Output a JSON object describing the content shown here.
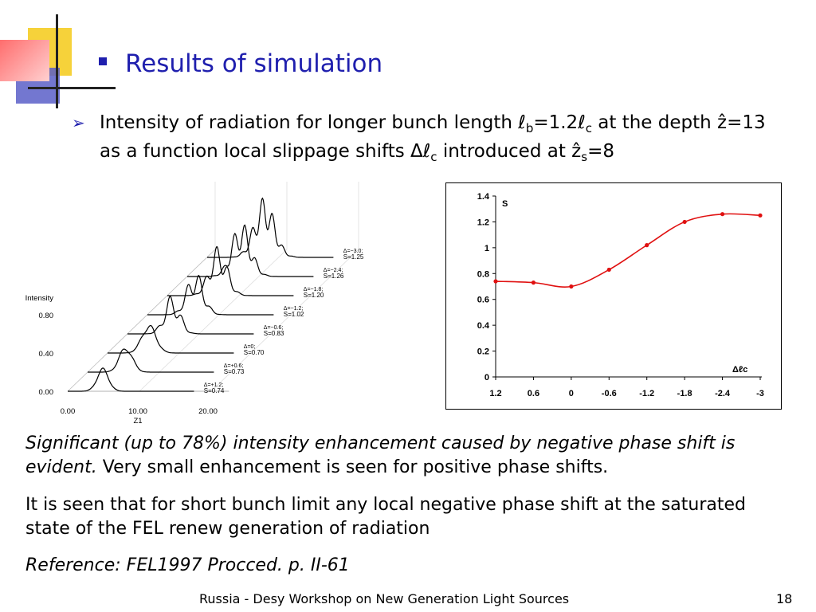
{
  "slide": {
    "title": "Results of simulation",
    "intro": {
      "p1": "Intensity of radiation for longer bunch length ℓ",
      "p1_sub": "b",
      "p2": "=1.2ℓ",
      "p2_sub": "c",
      "p3": " at the depth ẑ=13 as a function local slippage shifts Δℓ",
      "p3_sub": "c",
      "p4": " introduced at ẑ",
      "p4_sub": "s",
      "p5": "=8"
    },
    "para1_italic": "Significant (up to 78%) intensity enhancement caused by negative phase shift is evident.",
    "para1_normal": " Very small enhancement is seen for positive phase shifts.",
    "para2": "It is seen that for short bunch limit any local negative phase shift at the saturated state of the FEL renew generation of radiation",
    "reference": "Reference: FEL1997 Procced. p. II-61",
    "footer": "Russia - Desy Workshop on New Generation Light Sources",
    "page_number": "18"
  },
  "chart_data": [
    {
      "type": "line",
      "title": "",
      "ylabel": "Intensity",
      "xlabel": "Z1",
      "x_ticks": [
        "0.00",
        "10.00",
        "20.00"
      ],
      "y_ticks": [
        "0.00",
        "0.40",
        "0.80"
      ],
      "series_labels": [
        {
          "delta": "Δ=+1.2;",
          "s": "S=0.74"
        },
        {
          "delta": "Δ=+0.6;",
          "s": "S=0.73"
        },
        {
          "delta": "Δ=0;",
          "s": "S=0.70"
        },
        {
          "delta": "Δ=−0.6;",
          "s": "S=0.83"
        },
        {
          "delta": "Δ=−1.2;",
          "s": "S=1.02"
        },
        {
          "delta": "Δ=−1.8;",
          "s": "S=1.20"
        },
        {
          "delta": "Δ=−2.4;",
          "s": "S=1.26"
        },
        {
          "delta": "Δ=−3.0;",
          "s": "S=1.25"
        }
      ]
    },
    {
      "type": "line",
      "title": "",
      "ylabel": "S",
      "xlabel": "Δℓc",
      "x": [
        "1.2",
        "0.6",
        "0",
        "-0.6",
        "-1.2",
        "-1.8",
        "-2.4",
        "-3"
      ],
      "y_ticks": [
        "0",
        "0.2",
        "0.4",
        "0.6",
        "0.8",
        "1",
        "1.2",
        "1.4"
      ],
      "ylim": [
        0,
        1.4
      ],
      "series": [
        {
          "name": "",
          "values": [
            0.74,
            0.73,
            0.7,
            0.83,
            1.02,
            1.2,
            1.26,
            1.25
          ]
        }
      ],
      "color": "#e01010"
    }
  ]
}
